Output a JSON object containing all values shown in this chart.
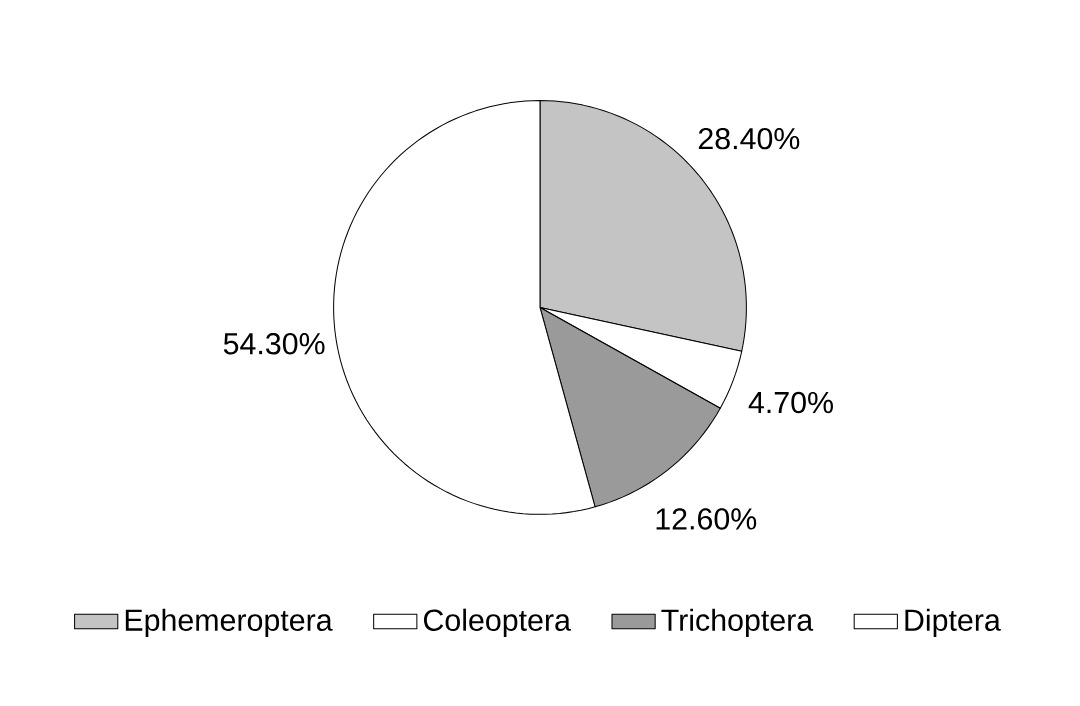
{
  "chart_data": {
    "type": "pie",
    "categories": [
      "Ephemeroptera",
      "Coleoptera",
      "Trichoptera",
      "Diptera"
    ],
    "values": [
      28.4,
      4.7,
      12.6,
      54.3
    ],
    "colors": [
      "#c4c4c4",
      "#ffffff",
      "#9a9a9a",
      "#ffffff"
    ],
    "value_labels": [
      "28.40%",
      "4.70%",
      "12.60%",
      "54.30%"
    ],
    "legend": "bottom"
  }
}
